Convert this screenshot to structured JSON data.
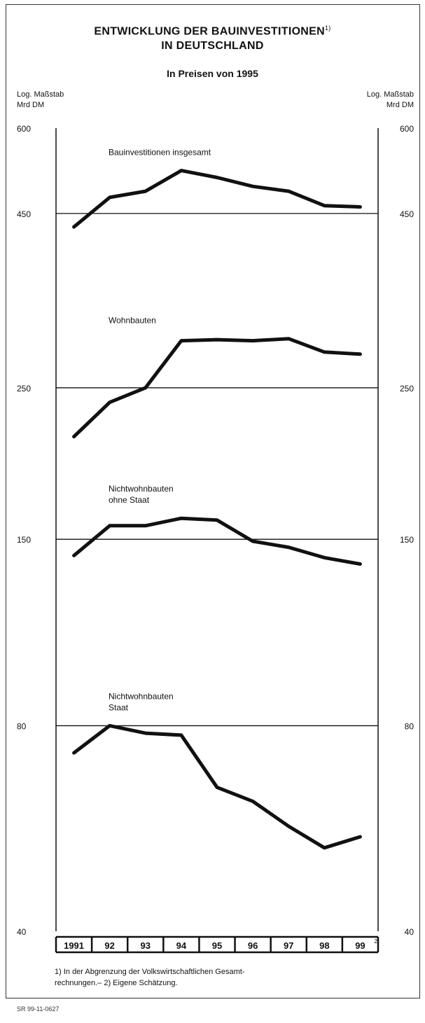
{
  "chart_data": {
    "type": "line",
    "title_line1": "ENTWICKLUNG DER BAUINVESTITIONEN",
    "title_line1_sup": "1)",
    "title_line2": "IN DEUTSCHLAND",
    "subtitle": "In Preisen von 1995",
    "y_scale_label_left": [
      "Log. Maßstab",
      "Mrd DM"
    ],
    "y_scale_label_right": [
      "Log. Maßstab",
      "Mrd DM"
    ],
    "yscale": "log",
    "ylim": [
      40,
      600
    ],
    "yticks": [
      40,
      80,
      150,
      250,
      450,
      600
    ],
    "ytick_labels": [
      "40",
      "80",
      "150",
      "250",
      "450",
      "600"
    ],
    "categories": [
      "1991",
      "92",
      "93",
      "94",
      "95",
      "96",
      "97",
      "98",
      "99"
    ],
    "last_category_sup": "2)",
    "series": [
      {
        "name": "Bauinvestitionen insgesamt",
        "values": [
          430,
          475,
          485,
          520,
          508,
          493,
          485,
          462,
          460
        ]
      },
      {
        "name": "Wohnbauten",
        "values": [
          212,
          238,
          250,
          293,
          294,
          293,
          295,
          282,
          280
        ]
      },
      {
        "name": "Nichtwohnbauten ohne Staat",
        "label_lines": [
          "Nichtwohnbauten",
          "ohne Staat"
        ],
        "values": [
          142,
          157,
          157,
          161,
          160,
          149,
          146,
          141,
          138
        ]
      },
      {
        "name": "Nichtwohnbauten Staat",
        "label_lines": [
          "Nichtwohnbauten",
          "Staat"
        ],
        "values": [
          73,
          80,
          78,
          77.5,
          65,
          62,
          57,
          53,
          55
        ]
      }
    ],
    "reference_lines": [
      450,
      250,
      150,
      80
    ],
    "grid": false
  },
  "footnote_line1": "1) In der Abgrenzung der Volkswirtschaftlichen Gesamt-",
  "footnote_line2": "rechnungen.– 2) Eigene Schätzung.",
  "source_id": "SR 99-11-0627"
}
